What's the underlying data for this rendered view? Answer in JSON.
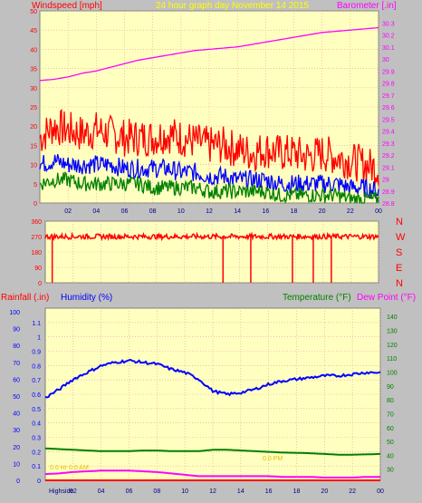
{
  "colors": {
    "background": "#c0c0c0",
    "plot_bg": "#ffffc0",
    "grid": "#e8a0a0",
    "wind_gust": "#ff0000",
    "wind_avg": "#0000ff",
    "wind_min": "#008000",
    "barometer": "#ff00ff",
    "direction": "#ff0000",
    "humidity": "#0000ff",
    "temperature": "#008000",
    "dewpoint": "#ff00ff",
    "rainfall": "#ff0000",
    "title": "#ffff00"
  },
  "header": {
    "wind_label": "Windspeed [mph]",
    "title": "24 hour graph day   November 14 2015",
    "baro_label": "Barometer [.in]"
  },
  "bottom_header": {
    "rain_label": "Rainfall (.in)",
    "humidity_label": "Humidity (%)",
    "temp_label": "Temperature (°F)",
    "dew_label": "Dew Point (°F)"
  },
  "footer": {
    "highside_label": "Highside"
  },
  "chart_data": [
    {
      "type": "line",
      "name": "wind-barometer",
      "x_ticks": [
        "02",
        "04",
        "06",
        "08",
        "10",
        "12",
        "14",
        "16",
        "18",
        "20",
        "22",
        "00"
      ],
      "left_axis": {
        "label": "Windspeed [mph]",
        "ylim": [
          0,
          50
        ],
        "ticks": [
          "0",
          "5",
          "10",
          "15",
          "20",
          "25",
          "30",
          "35",
          "40",
          "45",
          "50"
        ]
      },
      "right_axis": {
        "label": "Barometer [.in]",
        "ylim": [
          28.8,
          30.4
        ],
        "ticks": [
          "28.8",
          "28.9",
          "29",
          "29.1",
          "29.2",
          "29.3",
          "29.4",
          "29.5",
          "29.6",
          "29.7",
          "29.8",
          "29.9",
          "30",
          "30.1",
          "30.2",
          "30.3"
        ]
      },
      "series": [
        {
          "axis": "right",
          "color": "#ff00ff",
          "x": [
            0,
            1,
            2,
            3,
            4,
            5,
            6,
            7,
            8,
            9,
            10,
            11,
            12,
            13,
            14,
            15,
            16,
            17,
            18,
            19,
            20,
            21,
            22,
            23,
            24
          ],
          "values": [
            29.82,
            29.83,
            29.85,
            29.88,
            29.9,
            29.93,
            29.96,
            29.99,
            30.01,
            30.03,
            30.05,
            30.07,
            30.08,
            30.09,
            30.1,
            30.12,
            30.14,
            30.16,
            30.18,
            30.2,
            30.22,
            30.23,
            30.24,
            30.25,
            30.26
          ]
        },
        {
          "axis": "left",
          "color": "#ff0000",
          "x": [
            0,
            1,
            2,
            3,
            4,
            5,
            6,
            7,
            8,
            9,
            10,
            11,
            12,
            13,
            14,
            15,
            16,
            17,
            18,
            19,
            20,
            21,
            22,
            23,
            24
          ],
          "values": [
            17,
            20,
            19,
            18,
            19,
            18,
            17,
            17,
            17,
            18,
            17,
            16,
            15,
            15,
            14,
            13,
            14,
            13,
            13,
            12,
            13,
            12,
            11,
            10,
            9
          ],
          "noise": 5
        },
        {
          "axis": "left",
          "color": "#0000ff",
          "x": [
            0,
            1,
            2,
            3,
            4,
            5,
            6,
            7,
            8,
            9,
            10,
            11,
            12,
            13,
            14,
            15,
            16,
            17,
            18,
            19,
            20,
            21,
            22,
            23,
            24
          ],
          "values": [
            10,
            11,
            10,
            10,
            10,
            10,
            9,
            9,
            9,
            9,
            8,
            8,
            7,
            7,
            6,
            6,
            6,
            5,
            5,
            5,
            5,
            5,
            4,
            4,
            3
          ],
          "noise": 2.5
        },
        {
          "axis": "left",
          "color": "#008000",
          "x": [
            0,
            1,
            2,
            3,
            4,
            5,
            6,
            7,
            8,
            9,
            10,
            11,
            12,
            13,
            14,
            15,
            16,
            17,
            18,
            19,
            20,
            21,
            22,
            23,
            24
          ],
          "values": [
            5,
            6,
            6,
            5,
            5,
            5,
            5,
            5,
            4,
            4,
            4,
            4,
            3,
            3,
            3,
            3,
            3,
            2,
            2,
            2,
            2,
            2,
            1,
            1,
            1
          ],
          "noise": 2
        }
      ]
    },
    {
      "type": "line",
      "name": "wind-direction",
      "left_axis": {
        "ylim": [
          0,
          360
        ],
        "ticks": [
          "0",
          "90",
          "180",
          "270",
          "360"
        ]
      },
      "right_labels": [
        "N",
        "W",
        "S",
        "E",
        "N"
      ],
      "series": [
        {
          "color": "#ff0000",
          "x": [
            0,
            24
          ],
          "values": [
            270,
            270
          ],
          "noise": 15,
          "drops_at_hour": [
            0.5,
            12.8,
            14.8,
            17.8,
            19.3,
            20.6
          ]
        }
      ]
    },
    {
      "type": "line",
      "name": "humidity-temperature-rainfall",
      "x_ticks": [
        "02",
        "04",
        "06",
        "08",
        "10",
        "12",
        "14",
        "16",
        "18",
        "20",
        "22",
        "00"
      ],
      "left_axis_rain": {
        "label": "Rainfall (.in)",
        "ylim": [
          0,
          1.2
        ],
        "ticks": [
          "0",
          "0.1",
          "0.2",
          "0.3",
          "0.4",
          "0.5",
          "0.6",
          "0.7",
          "0.8",
          "0.9",
          "1",
          "1.1"
        ]
      },
      "left_axis_hum": {
        "label": "Humidity (%)",
        "ylim": [
          0,
          100
        ],
        "ticks": [
          "0",
          "10",
          "20",
          "30",
          "40",
          "50",
          "60",
          "70",
          "80",
          "90",
          "100"
        ]
      },
      "right_axis": {
        "label": "Temperature (°F)",
        "ylim": [
          22,
          146
        ],
        "ticks": [
          "30",
          "40",
          "50",
          "60",
          "70",
          "80",
          "90",
          "100",
          "110",
          "120",
          "130",
          "140"
        ]
      },
      "series": [
        {
          "axis": "hum",
          "color": "#0000ff",
          "x": [
            0,
            1,
            2,
            3,
            4,
            5,
            6,
            7,
            8,
            9,
            10,
            11,
            12,
            13,
            14,
            15,
            16,
            17,
            18,
            19,
            20,
            21,
            22,
            23,
            24
          ],
          "values": [
            49,
            54,
            60,
            64,
            68,
            70,
            71,
            70,
            69,
            66,
            64,
            60,
            53,
            51,
            52,
            54,
            57,
            59,
            60,
            61,
            62,
            62,
            63,
            64,
            64
          ]
        },
        {
          "axis": "temp",
          "color": "#008000",
          "x": [
            0,
            1,
            2,
            3,
            4,
            5,
            6,
            7,
            8,
            9,
            10,
            11,
            12,
            13,
            14,
            15,
            16,
            17,
            18,
            19,
            20,
            21,
            22,
            23,
            24
          ],
          "values": [
            45,
            44.5,
            44,
            43.5,
            43,
            43,
            43,
            43.5,
            43.5,
            43,
            43,
            43,
            44,
            44,
            43.5,
            43,
            42.5,
            42,
            41.8,
            41.5,
            41,
            40.5,
            40.5,
            40.7,
            41
          ]
        },
        {
          "axis": "temp",
          "color": "#ff00ff",
          "x": [
            0,
            1,
            2,
            3,
            4,
            5,
            6,
            7,
            8,
            9,
            10,
            11,
            12,
            13,
            14,
            15,
            16,
            17,
            18,
            19,
            20,
            21,
            22,
            23,
            24
          ],
          "values": [
            26.5,
            27,
            28,
            28.5,
            29,
            29,
            29,
            28.5,
            28,
            27,
            26,
            25,
            25,
            25,
            25,
            25,
            25,
            24.5,
            24.5,
            24.5,
            24,
            24,
            24,
            24.5,
            24.5
          ]
        },
        {
          "axis": "rain",
          "color": "#ff0000",
          "x": [
            0,
            24
          ],
          "values": [
            0,
            0
          ]
        }
      ],
      "annotations": [
        "0.0 Hr 0.0 AM",
        "0.0 PM"
      ]
    }
  ]
}
